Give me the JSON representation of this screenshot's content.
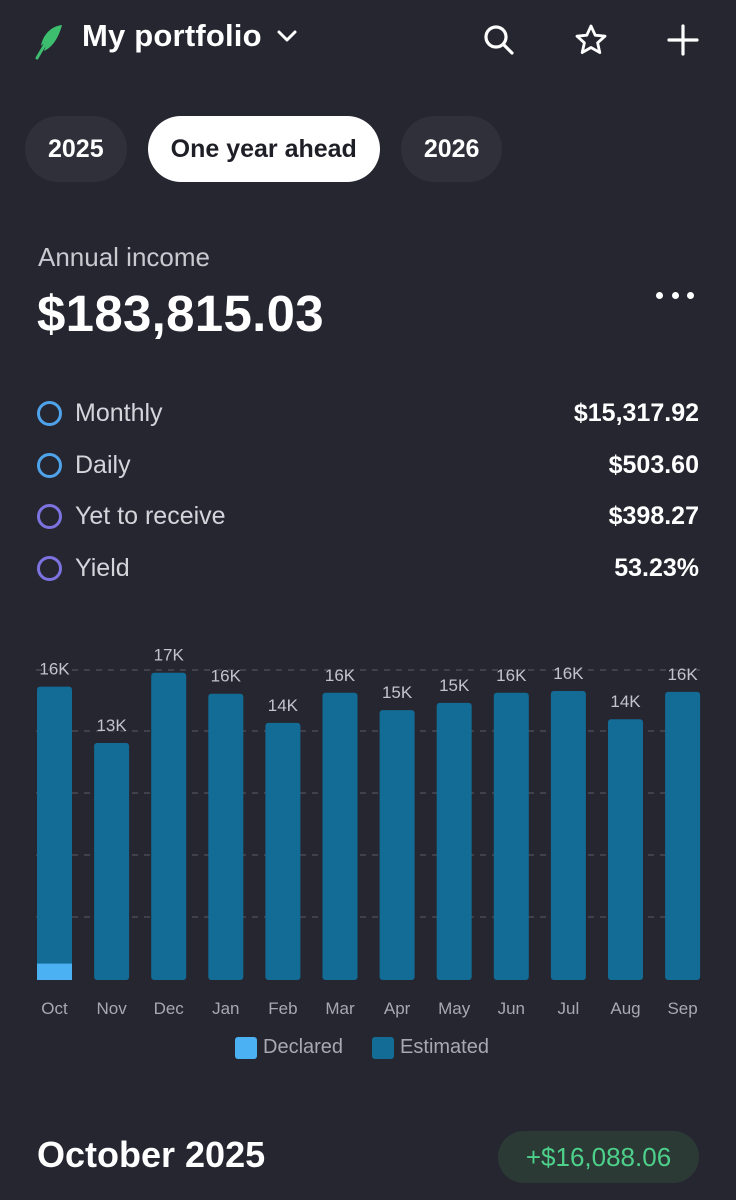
{
  "header": {
    "title": "My portfolio",
    "logo_icon": "feather-logo-icon",
    "icons": [
      "search-icon",
      "star-icon",
      "plus-icon"
    ],
    "brand_color": "#3dbd6e"
  },
  "tabs": [
    {
      "label": "2025",
      "active": false
    },
    {
      "label": "One year ahead",
      "active": true
    },
    {
      "label": "2026",
      "active": false
    }
  ],
  "annual": {
    "label": "Annual income",
    "value": "$183,815.03"
  },
  "stats": [
    {
      "label": "Monthly",
      "value": "$15,317.92",
      "ring_color": "#4fa3ea"
    },
    {
      "label": "Daily",
      "value": "$503.60",
      "ring_color": "#4fa3ea"
    },
    {
      "label": "Yet to receive",
      "value": "$398.27",
      "ring_color": "#7c73e0"
    },
    {
      "label": "Yield",
      "value": "53.23%",
      "ring_color": "#7c73e0"
    }
  ],
  "chart_data": {
    "type": "bar",
    "stacked": true,
    "categories": [
      "Oct",
      "Nov",
      "Dec",
      "Jan",
      "Feb",
      "Mar",
      "Apr",
      "May",
      "Jun",
      "Jul",
      "Aug",
      "Sep"
    ],
    "data_labels": [
      "16K",
      "13K",
      "17K",
      "16K",
      "14K",
      "16K",
      "15K",
      "15K",
      "16K",
      "16K",
      "14K",
      "16K"
    ],
    "series": [
      {
        "name": "Declared",
        "color": "#4cb1f2",
        "values": [
          900,
          0,
          0,
          0,
          0,
          0,
          0,
          0,
          0,
          0,
          0,
          0
        ]
      },
      {
        "name": "Estimated",
        "color": "#136c95",
        "values": [
          15188,
          13000,
          16850,
          15700,
          14100,
          15750,
          14800,
          15200,
          15750,
          15850,
          14300,
          15800
        ]
      }
    ],
    "ylim": [
      0,
      17000
    ],
    "grid": true,
    "legend": "bottom"
  },
  "legend": [
    {
      "label": "Declared",
      "color": "#4cb1f2"
    },
    {
      "label": "Estimated",
      "color": "#136c95"
    }
  ],
  "section": {
    "title": "October 2025",
    "badge": "+$16,088.06"
  }
}
